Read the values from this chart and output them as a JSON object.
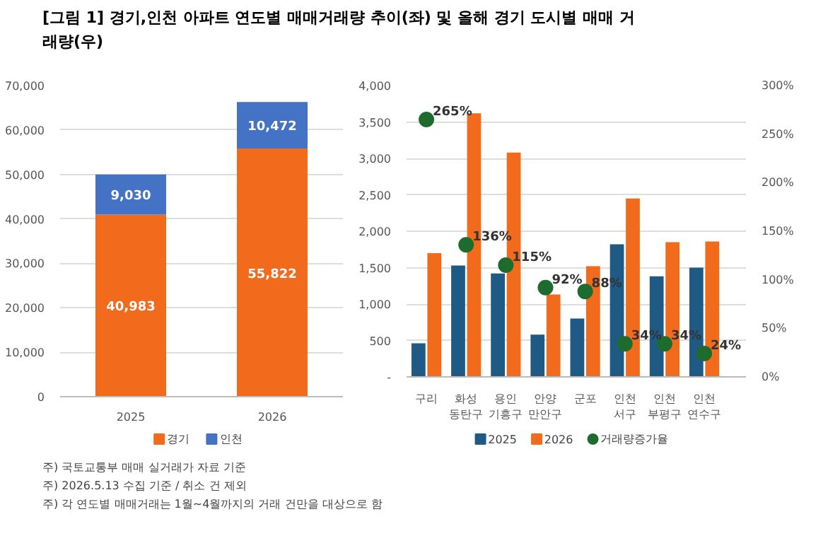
{
  "chart_data": [
    {
      "type": "bar",
      "title": "[그림 1] 경기,인천 아파트 연도별 매매거래량 추이(좌) 및 올해 경기 도시별 매매 거래량(우)",
      "stacked": true,
      "categories": [
        "2025",
        "2026"
      ],
      "series": [
        {
          "name": "경기",
          "color": "#f26b1d",
          "values": [
            40983,
            55822
          ],
          "value_labels": [
            "40,983",
            "55,822"
          ]
        },
        {
          "name": "인천",
          "color": "#4472c4",
          "values": [
            9030,
            10472
          ],
          "value_labels": [
            "9,030",
            "10,472"
          ]
        }
      ],
      "ylim": [
        0,
        70000
      ],
      "yticks": [
        0,
        {
          "value": 10000,
          "label": "10,000"
        },
        {
          "value": 20000,
          "label": "20,000"
        },
        {
          "value": 30000,
          "label": "30,000"
        },
        {
          "value": 40000,
          "label": "40,000"
        },
        {
          "value": 50000,
          "label": "50,000"
        },
        {
          "value": 60000,
          "label": "60,000"
        },
        {
          "value": 70000,
          "label": "70,000"
        }
      ],
      "grid": "y",
      "legend": "bottom",
      "annotations": [
        "주) 국토교통부 매매 실거래가 자료 기준",
        "주) 2026.5.13 수집 기준 / 취소 건 제외",
        "주) 각 연도별 매매거래는 1월~4월까지의 거래 건만을 대상으로 함"
      ]
    },
    {
      "type": "bar",
      "categories": [
        "구리",
        "화성 동탄구",
        "용인 기흥구",
        "안양 만안구",
        "군포",
        "인천 서구",
        "인천 부평구",
        "인천 연수구"
      ],
      "series": [
        {
          "name": "2025",
          "color": "#1f5a85",
          "values": [
            460,
            1530,
            1420,
            580,
            800,
            1820,
            1380,
            1500
          ]
        },
        {
          "name": "2026",
          "color": "#f26b1d",
          "values": [
            1700,
            3620,
            3080,
            1130,
            1520,
            2450,
            1850,
            1860
          ]
        },
        {
          "name": "거래량증가율",
          "type": "scatter",
          "axis": "y2",
          "color": "#1e6b2e",
          "values": [
            265,
            136,
            115,
            92,
            88,
            34,
            34,
            24
          ],
          "value_labels": [
            "265%",
            "136%",
            "115%",
            "92%",
            "88%",
            "34%",
            "34%",
            "24%"
          ]
        }
      ],
      "ylim": [
        0,
        4000
      ],
      "yticks": [
        {
          "value": 0,
          "label": "-"
        },
        {
          "value": 500,
          "label": "500"
        },
        {
          "value": 1000,
          "label": "1,000"
        },
        {
          "value": 1500,
          "label": "1,500"
        },
        {
          "value": 2000,
          "label": "2,000"
        },
        {
          "value": 2500,
          "label": "2,500"
        },
        {
          "value": 3000,
          "label": "3,000"
        },
        {
          "value": 3500,
          "label": "3,500"
        },
        {
          "value": 4000,
          "label": "4,000"
        }
      ],
      "y2lim": [
        0,
        300
      ],
      "y2ticks": [
        {
          "value": 0,
          "label": "0%"
        },
        {
          "value": 50,
          "label": "50%"
        },
        {
          "value": 100,
          "label": "100%"
        },
        {
          "value": 150,
          "label": "150%"
        },
        {
          "value": 200,
          "label": "200%"
        },
        {
          "value": 250,
          "label": "250%"
        },
        {
          "value": 300,
          "label": "300%"
        }
      ],
      "grid": "y",
      "legend": "bottom",
      "marker": "circle"
    }
  ]
}
